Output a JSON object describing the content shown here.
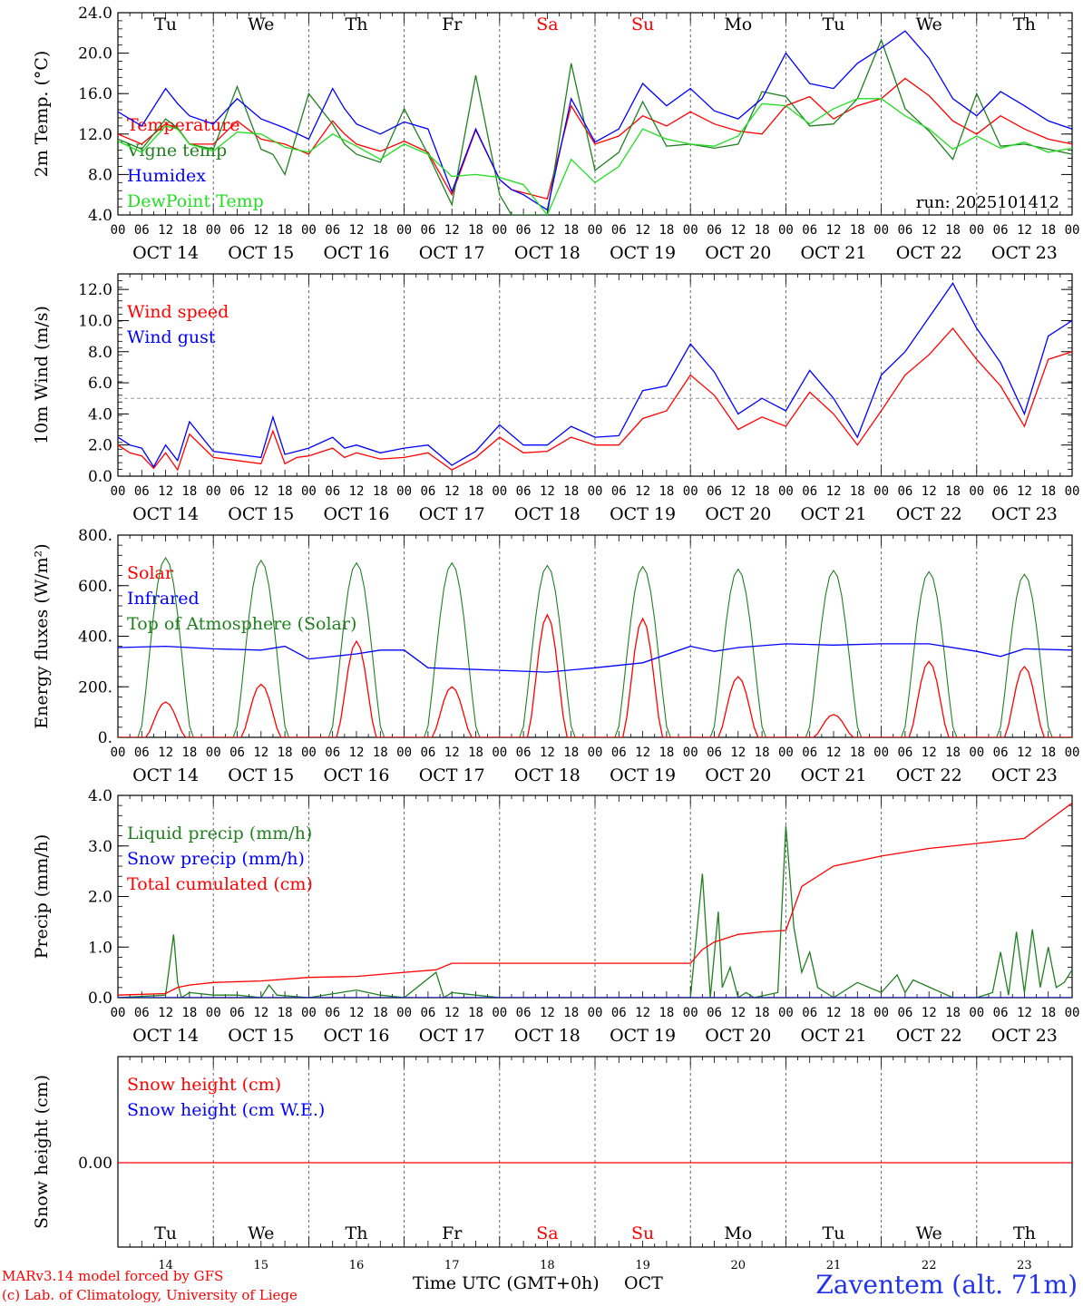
{
  "colors": {
    "red": "#ff0000",
    "green": "#208020",
    "blue": "#0000ff",
    "lime": "#22dd22",
    "grey": "#999999",
    "black": "#000000"
  },
  "days": {
    "short": [
      "Tu",
      "We",
      "Th",
      "Fr",
      "Sa",
      "Su",
      "Mo",
      "Tu",
      "We",
      "Th"
    ],
    "weekend": [
      false,
      false,
      false,
      false,
      true,
      true,
      false,
      false,
      false,
      false
    ],
    "dates": [
      "OCT 14",
      "OCT 15",
      "OCT 16",
      "OCT 17",
      "OCT 18",
      "OCT 19",
      "OCT 20",
      "OCT 21",
      "OCT 22",
      "OCT 23"
    ],
    "nums": [
      "14",
      "15",
      "16",
      "17",
      "18",
      "19",
      "20",
      "21",
      "22",
      "23"
    ]
  },
  "hour_labels": [
    "00",
    "06",
    "12",
    "18"
  ],
  "final_hour_label": "00",
  "footer": {
    "model": "MARv3.14 model forced by GFS",
    "copyright": "(c) Lab. of Climatology, University of Liege",
    "xlabel": "Time UTC (GMT+0h)",
    "month": "OCT",
    "station": "Zaventem (alt. 71m)"
  },
  "chart_data": [
    {
      "id": "temp",
      "type": "line",
      "ylabel": "2m Temp. (°C)",
      "ylim": [
        4,
        24
      ],
      "yticks": [
        "4.0",
        "8.0",
        "12.0",
        "16.0",
        "20.0",
        "24.0"
      ],
      "annotation": "run: 2025101412",
      "x_unit": "hours since OCT 14 00 UTC",
      "series": [
        {
          "name": "Temperature",
          "color": "red",
          "x": [
            0,
            6,
            12,
            15,
            18,
            24,
            30,
            36,
            42,
            48,
            54,
            57,
            60,
            66,
            72,
            78,
            84,
            90,
            96,
            99,
            102,
            108,
            114,
            120,
            126,
            132,
            138,
            144,
            150,
            156,
            162,
            168,
            174,
            180,
            186,
            192,
            198,
            204,
            210,
            216,
            222,
            228,
            234,
            240
          ],
          "y": [
            12,
            11,
            13,
            12.6,
            11,
            11,
            13.3,
            11.5,
            11,
            10,
            13.3,
            12,
            11,
            10.3,
            11.3,
            10.2,
            6,
            12.4,
            7.5,
            6.5,
            6.2,
            5.6,
            14.8,
            11,
            11.8,
            13.8,
            12.8,
            14.2,
            13,
            12.3,
            12,
            14.8,
            15.7,
            13.5,
            14.8,
            15.5,
            17.5,
            15.8,
            13.3,
            12,
            13.8,
            12.5,
            11.5,
            11
          ]
        },
        {
          "name": "Vigne temp",
          "color": "green",
          "x": [
            0,
            6,
            12,
            15,
            18,
            24,
            30,
            36,
            39,
            42,
            48,
            54,
            57,
            60,
            66,
            72,
            78,
            84,
            90,
            96,
            99,
            102,
            108,
            114,
            120,
            126,
            132,
            138,
            144,
            150,
            156,
            162,
            168,
            174,
            180,
            186,
            192,
            198,
            204,
            210,
            216,
            222,
            228,
            234,
            240
          ],
          "y": [
            11.5,
            10.5,
            13.5,
            12.6,
            11,
            10.5,
            16.7,
            10.5,
            10,
            8,
            16,
            13,
            11,
            10,
            9.2,
            14.5,
            10,
            5,
            17.8,
            6,
            4,
            4,
            4,
            19,
            8.4,
            10.2,
            15.2,
            10.8,
            11,
            10.6,
            11,
            16.2,
            15.7,
            12.8,
            13,
            15.5,
            21.3,
            14.5,
            12.3,
            9.5,
            16,
            10.8,
            11,
            10.5,
            10
          ]
        },
        {
          "name": "Humidex",
          "color": "blue",
          "x": [
            0,
            6,
            12,
            15,
            18,
            24,
            30,
            36,
            42,
            48,
            54,
            57,
            60,
            66,
            72,
            78,
            84,
            90,
            96,
            99,
            102,
            108,
            114,
            120,
            126,
            132,
            138,
            144,
            150,
            156,
            162,
            168,
            174,
            180,
            186,
            192,
            198,
            204,
            210,
            216,
            222,
            228,
            234,
            240
          ],
          "y": [
            14.2,
            12.8,
            16.5,
            15,
            13.8,
            13,
            15.5,
            13.5,
            12.6,
            11.5,
            16.5,
            14.5,
            13,
            12,
            13.2,
            12.5,
            6.3,
            12.5,
            7.5,
            6.5,
            6,
            4.5,
            15.5,
            11.2,
            12.5,
            17,
            14.8,
            16.5,
            14.3,
            13.5,
            15.5,
            20,
            17,
            16.5,
            19,
            20.5,
            22.2,
            19.5,
            15.5,
            13.8,
            16.2,
            14.8,
            13.3,
            12.5
          ]
        },
        {
          "name": "DewPoint Temp",
          "color": "lime",
          "x": [
            0,
            6,
            12,
            15,
            18,
            24,
            30,
            36,
            42,
            48,
            54,
            60,
            66,
            72,
            78,
            84,
            90,
            96,
            102,
            108,
            114,
            120,
            126,
            132,
            138,
            144,
            150,
            156,
            162,
            168,
            174,
            180,
            186,
            192,
            198,
            204,
            210,
            216,
            222,
            228,
            234,
            240
          ],
          "y": [
            11.3,
            10.2,
            12.8,
            12.5,
            11,
            10.3,
            12.2,
            12,
            10.7,
            10.2,
            12,
            10.8,
            9.5,
            11,
            10,
            7.8,
            8,
            7.7,
            7,
            4,
            9.5,
            7.2,
            8.8,
            12.5,
            11.5,
            11,
            10.8,
            11.8,
            15,
            14.8,
            13,
            14.5,
            15.5,
            15.5,
            13.8,
            12.5,
            10.5,
            11.8,
            10.6,
            11.2,
            10.2,
            10.6
          ]
        }
      ]
    },
    {
      "id": "wind",
      "type": "line",
      "ylabel": "10m Wind (m/s)",
      "ylim": [
        0,
        13
      ],
      "yticks": [
        "0.0",
        "2.0",
        "4.0",
        "6.0",
        "8.0",
        "10.0",
        "12.0"
      ],
      "reference_line": 5,
      "x_unit": "hours since OCT 14 00 UTC",
      "series": [
        {
          "name": "Wind speed",
          "color": "red",
          "x": [
            0,
            3,
            6,
            9,
            12,
            15,
            18,
            24,
            30,
            36,
            39,
            42,
            45,
            48,
            54,
            57,
            60,
            66,
            72,
            78,
            84,
            90,
            96,
            102,
            108,
            114,
            120,
            126,
            132,
            138,
            144,
            150,
            156,
            162,
            168,
            174,
            180,
            186,
            192,
            198,
            204,
            210,
            216,
            222,
            228,
            234,
            240
          ],
          "y": [
            2,
            1.5,
            1.3,
            0.5,
            1.5,
            0.4,
            2.7,
            1.2,
            1,
            0.8,
            2.9,
            0.8,
            1.2,
            1.3,
            1.8,
            1.2,
            1.5,
            1.1,
            1.2,
            1.5,
            0.4,
            1.2,
            2.5,
            1.5,
            1.6,
            2.5,
            2,
            2,
            3.7,
            4.2,
            6.5,
            5.2,
            3,
            3.8,
            3.2,
            5.4,
            4,
            2,
            4.2,
            6.5,
            7.8,
            9.5,
            7.5,
            5.8,
            3.2,
            7.5,
            8
          ]
        },
        {
          "name": "Wind gust",
          "color": "blue",
          "x": [
            0,
            3,
            6,
            9,
            12,
            15,
            18,
            24,
            30,
            36,
            39,
            42,
            45,
            48,
            54,
            57,
            60,
            66,
            72,
            78,
            84,
            90,
            96,
            102,
            108,
            114,
            120,
            126,
            132,
            138,
            144,
            150,
            156,
            162,
            168,
            174,
            180,
            186,
            192,
            198,
            204,
            210,
            216,
            222,
            228,
            234,
            240
          ],
          "y": [
            2.5,
            2,
            1.8,
            0.6,
            2,
            1,
            3.5,
            1.6,
            1.4,
            1.2,
            3.8,
            1.4,
            1.6,
            1.8,
            2.5,
            1.8,
            2,
            1.5,
            1.8,
            2,
            0.7,
            1.6,
            3.3,
            2,
            2,
            3.2,
            2.5,
            2.6,
            5.5,
            5.8,
            8.5,
            6.7,
            4,
            5,
            4.2,
            6.8,
            5,
            2.5,
            6.5,
            8,
            10.2,
            12.4,
            9.5,
            7.3,
            4,
            9,
            10
          ]
        }
      ]
    },
    {
      "id": "flux",
      "type": "line",
      "ylabel": "Energy fluxes (W/m²)",
      "ylim": [
        0,
        800
      ],
      "yticks": [
        "0.",
        "200.",
        "400.",
        "600.",
        "800."
      ],
      "x_unit": "hours since OCT 14 00 UTC",
      "solar_peaks": [
        140,
        210,
        380,
        200,
        485,
        470,
        240,
        90,
        300,
        280
      ],
      "toa_peaks": [
        710,
        700,
        690,
        690,
        680,
        675,
        665,
        660,
        655,
        645
      ],
      "series": [
        {
          "name": "Solar",
          "color": "red",
          "x": [],
          "y": []
        },
        {
          "name": "Infrared",
          "color": "blue",
          "x": [
            0,
            12,
            24,
            36,
            42,
            48,
            60,
            66,
            72,
            78,
            96,
            108,
            120,
            132,
            144,
            150,
            156,
            168,
            180,
            192,
            204,
            216,
            222,
            228,
            240
          ],
          "y": [
            355,
            360,
            350,
            345,
            360,
            310,
            330,
            345,
            345,
            275,
            265,
            258,
            275,
            295,
            360,
            340,
            355,
            370,
            365,
            370,
            370,
            340,
            320,
            350,
            345
          ]
        },
        {
          "name": "Top of Atmosphere (Solar)",
          "color": "green",
          "x": [],
          "y": []
        }
      ]
    },
    {
      "id": "precip",
      "type": "line",
      "ylabel": "Precip (mm/h)",
      "ylim": [
        0,
        4
      ],
      "yticks": [
        "0.0",
        "1.0",
        "2.0",
        "3.0",
        "4.0"
      ],
      "x_unit": "hours since OCT 14 00 UTC",
      "series": [
        {
          "name": "Liquid precip (mm/h)",
          "color": "green",
          "x": [
            0,
            12,
            14,
            15,
            16,
            18,
            24,
            30,
            36,
            38,
            40,
            48,
            60,
            66,
            72,
            80,
            82,
            84,
            96,
            120,
            144,
            147,
            149,
            151,
            152,
            154,
            156,
            158,
            160,
            166,
            168,
            170,
            172,
            174,
            176,
            180,
            186,
            192,
            196,
            198,
            200,
            210,
            216,
            220,
            222,
            224,
            226,
            228,
            230,
            232,
            234,
            236,
            238,
            240
          ],
          "y": [
            0,
            0.05,
            1.25,
            0.3,
            0,
            0.1,
            0.05,
            0.05,
            0,
            0.25,
            0.05,
            0,
            0.15,
            0.05,
            0,
            0.5,
            0,
            0.1,
            0,
            0,
            0,
            2.45,
            0,
            1.7,
            0.2,
            0.6,
            0,
            0.1,
            0,
            0.1,
            3.4,
            1.4,
            0.5,
            0.9,
            0.2,
            0,
            0.3,
            0.1,
            0.45,
            0.1,
            0.35,
            0,
            0,
            0.1,
            0.9,
            0.05,
            1.3,
            0.1,
            1.35,
            0.2,
            1,
            0.2,
            0.3,
            0.55
          ]
        },
        {
          "name": "Snow precip (mm/h)",
          "color": "blue",
          "x": [
            0,
            240
          ],
          "y": [
            0,
            0
          ]
        },
        {
          "name": "Total cumulated (cm)",
          "color": "red",
          "x": [
            0,
            12,
            15,
            18,
            24,
            36,
            48,
            60,
            72,
            80,
            84,
            96,
            120,
            144,
            147,
            150,
            156,
            162,
            168,
            172,
            180,
            186,
            192,
            204,
            216,
            228,
            234,
            240
          ],
          "y": [
            0.05,
            0.08,
            0.2,
            0.25,
            0.3,
            0.33,
            0.4,
            0.42,
            0.5,
            0.55,
            0.68,
            0.68,
            0.68,
            0.68,
            0.95,
            1.1,
            1.25,
            1.3,
            1.33,
            2.2,
            2.6,
            2.7,
            2.8,
            2.95,
            3.05,
            3.15,
            3.5,
            3.85
          ]
        }
      ]
    },
    {
      "id": "snow",
      "type": "line",
      "ylabel": "Snow height (cm)",
      "yticks": [
        "0.00"
      ],
      "x_unit": "hours since OCT 14 00 UTC",
      "series": [
        {
          "name": "Snow height (cm)",
          "color": "red",
          "x": [
            0,
            240
          ],
          "y": [
            0,
            0
          ]
        },
        {
          "name": "Snow height (cm W.E.)",
          "color": "blue",
          "x": [],
          "y": []
        }
      ]
    }
  ]
}
